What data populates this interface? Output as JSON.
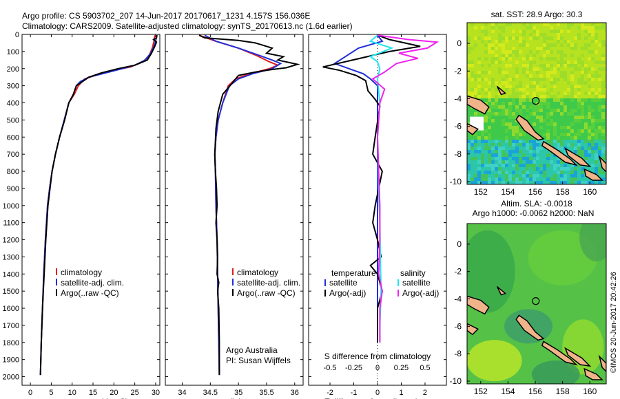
{
  "header": {
    "line1": "Argo profile: CS 5903702_207 14-Jun-2017 20170617_1231 4.157S 156.036E",
    "line2": "Climatology: CARS2009. Satellite-adjusted climatology: synTS_20170613.nc (1.6d earlier)"
  },
  "side_stamp": "©IMOS 20-Jun-2017 20:42:26",
  "colors": {
    "climatology": "#e41a1c",
    "satellite": "#1f2fd6",
    "argo": "#000000",
    "sat_cyan": "#22e6ee",
    "argo_magenta": "#ee22ee"
  },
  "chart_data": [
    {
      "type": "line",
      "id": "temperature",
      "xlabel": "temperature (deg C)",
      "xlim": [
        -2,
        31
      ],
      "ylim": [
        2050,
        0
      ],
      "xticks": [
        0,
        5,
        10,
        15,
        20,
        25,
        30
      ],
      "yticks": [
        0,
        100,
        200,
        300,
        400,
        500,
        600,
        700,
        800,
        900,
        1000,
        1100,
        1200,
        1300,
        1400,
        1500,
        1600,
        1700,
        1800,
        1900,
        2000
      ],
      "legend": [
        "climatology",
        "satellite-adj. clim.",
        "Argo(..raw -QC)"
      ],
      "series": [
        {
          "name": "climatology",
          "color": "#e41a1c",
          "points": [
            [
              29.8,
              5
            ],
            [
              29.6,
              40
            ],
            [
              29.2,
              80
            ],
            [
              28.5,
              120
            ],
            [
              27,
              160
            ],
            [
              24,
              190
            ],
            [
              20,
              210
            ],
            [
              16,
              235
            ],
            [
              13,
              260
            ],
            [
              11.5,
              300
            ],
            [
              10.5,
              350
            ],
            [
              9.2,
              400
            ],
            [
              8.2,
              500
            ],
            [
              7,
              600
            ],
            [
              6,
              700
            ],
            [
              5.2,
              800
            ],
            [
              4.6,
              900
            ],
            [
              4.1,
              1000
            ],
            [
              3.6,
              1200
            ],
            [
              3.2,
              1400
            ],
            [
              2.9,
              1600
            ],
            [
              2.6,
              1800
            ],
            [
              2.4,
              1990
            ]
          ]
        },
        {
          "name": "satellite-adj. clim.",
          "color": "#1f2fd6",
          "points": [
            [
              30.3,
              5
            ],
            [
              30,
              40
            ],
            [
              29.6,
              70
            ],
            [
              28.8,
              110
            ],
            [
              27.5,
              150
            ],
            [
              25,
              180
            ],
            [
              22,
              200
            ],
            [
              18,
              225
            ],
            [
              14,
              250
            ],
            [
              12,
              275
            ],
            [
              11,
              300
            ],
            [
              10.3,
              350
            ],
            [
              9.2,
              400
            ],
            [
              8.1,
              500
            ],
            [
              7,
              600
            ],
            [
              6,
              700
            ],
            [
              5.2,
              800
            ],
            [
              4.6,
              900
            ],
            [
              4.1,
              1000
            ],
            [
              3.6,
              1200
            ],
            [
              3.2,
              1400
            ],
            [
              2.9,
              1600
            ],
            [
              2.6,
              1800
            ],
            [
              2.4,
              1990
            ]
          ]
        },
        {
          "name": "Argo(..raw -QC)",
          "color": "#000000",
          "points": [
            [
              30.3,
              5
            ],
            [
              30.2,
              20
            ],
            [
              29.5,
              30
            ],
            [
              30.2,
              45
            ],
            [
              29.8,
              70
            ],
            [
              29,
              110
            ],
            [
              28,
              150
            ],
            [
              25,
              180
            ],
            [
              21,
              200
            ],
            [
              17,
              225
            ],
            [
              14,
              250
            ],
            [
              12.5,
              275
            ],
            [
              11,
              300
            ],
            [
              10.3,
              350
            ],
            [
              9.2,
              400
            ],
            [
              8.2,
              500
            ],
            [
              7,
              600
            ],
            [
              6,
              700
            ],
            [
              5.2,
              800
            ],
            [
              4.7,
              900
            ],
            [
              4.2,
              1000
            ],
            [
              3.7,
              1200
            ],
            [
              3.3,
              1400
            ],
            [
              2.9,
              1600
            ],
            [
              2.6,
              1800
            ],
            [
              2.4,
              1990
            ]
          ]
        }
      ]
    },
    {
      "type": "line",
      "id": "salinity",
      "xlabel": "salinity",
      "xlim": [
        33.7,
        36.15
      ],
      "ylim": [
        2050,
        0
      ],
      "xticks": [
        34,
        34.5,
        35,
        35.5,
        36
      ],
      "xticklabels": [
        "34",
        "34.5",
        "35",
        "35.5",
        "36"
      ],
      "legend": [
        "climatology",
        "satellite-adj. clim.",
        "Argo(..raw -QC)"
      ],
      "credit": [
        "Argo Australia",
        "PI: Susan Wijffels"
      ],
      "series": [
        {
          "name": "climatology",
          "color": "#e41a1c",
          "points": [
            [
              34.3,
              5
            ],
            [
              34.6,
              40
            ],
            [
              35,
              80
            ],
            [
              35.3,
              120
            ],
            [
              35.55,
              160
            ],
            [
              35.7,
              180
            ],
            [
              35.55,
              200
            ],
            [
              35.2,
              230
            ],
            [
              34.95,
              260
            ],
            [
              34.82,
              300
            ],
            [
              34.72,
              400
            ],
            [
              34.64,
              500
            ],
            [
              34.6,
              600
            ],
            [
              34.58,
              700
            ],
            [
              34.59,
              800
            ],
            [
              34.6,
              1000
            ],
            [
              34.62,
              1200
            ],
            [
              34.63,
              1400
            ],
            [
              34.64,
              1600
            ],
            [
              34.65,
              1800
            ],
            [
              34.66,
              1990
            ]
          ]
        },
        {
          "name": "satellite-adj. clim.",
          "color": "#1f2fd6",
          "points": [
            [
              34.4,
              5
            ],
            [
              34.6,
              40
            ],
            [
              35,
              80
            ],
            [
              35.35,
              120
            ],
            [
              35.6,
              150
            ],
            [
              35.75,
              170
            ],
            [
              35.6,
              200
            ],
            [
              35.25,
              230
            ],
            [
              35,
              260
            ],
            [
              34.84,
              300
            ],
            [
              34.72,
              400
            ],
            [
              34.64,
              500
            ],
            [
              34.6,
              600
            ],
            [
              34.58,
              700
            ],
            [
              34.59,
              800
            ],
            [
              34.6,
              1000
            ],
            [
              34.62,
              1200
            ],
            [
              34.63,
              1400
            ],
            [
              34.64,
              1600
            ],
            [
              34.65,
              1800
            ],
            [
              34.66,
              1990
            ]
          ]
        },
        {
          "name": "Argo(..raw -QC)",
          "color": "#000000",
          "points": [
            [
              34.3,
              5
            ],
            [
              34.4,
              20
            ],
            [
              35,
              35
            ],
            [
              35.3,
              50
            ],
            [
              35.6,
              80
            ],
            [
              35.5,
              110
            ],
            [
              35.8,
              130
            ],
            [
              35.7,
              150
            ],
            [
              36.05,
              175
            ],
            [
              35.85,
              195
            ],
            [
              35.6,
              205
            ],
            [
              35.3,
              220
            ],
            [
              35,
              240
            ],
            [
              34.95,
              260
            ],
            [
              34.85,
              300
            ],
            [
              34.72,
              350
            ],
            [
              34.64,
              450
            ],
            [
              34.6,
              550
            ],
            [
              34.58,
              700
            ],
            [
              34.59,
              800
            ],
            [
              34.61,
              900
            ],
            [
              34.62,
              1000
            ],
            [
              34.6,
              1100
            ],
            [
              34.62,
              1200
            ],
            [
              34.63,
              1300
            ],
            [
              34.62,
              1400
            ],
            [
              34.65,
              1450
            ],
            [
              34.63,
              1500
            ],
            [
              34.65,
              1600
            ],
            [
              34.66,
              1800
            ],
            [
              34.66,
              1990
            ]
          ]
        }
      ]
    },
    {
      "type": "line",
      "id": "difference",
      "xlabel": "T difference from climatology",
      "x2label": "S difference from climatology",
      "xlim": [
        -2.9,
        2.9
      ],
      "ylim": [
        2050,
        0
      ],
      "xticks": [
        -2,
        -1,
        0,
        1,
        2
      ],
      "x2ticks": [
        -0.5,
        -0.25,
        0,
        0.25,
        0.5
      ],
      "x2ticklabels": [
        "-0.5",
        "-0.25",
        "0",
        "0.25",
        "0.5"
      ],
      "legend_temperature": {
        "title": "temperature",
        "items": [
          "satellite",
          "Argo(-adj)"
        ]
      },
      "legend_salinity": {
        "title": "salinity",
        "items": [
          "satellite",
          "Argo(-adj)"
        ]
      },
      "series": [
        {
          "name": "satellite",
          "color": "#1f2fd6",
          "points": [
            [
              0,
              5
            ],
            [
              0.2,
              40
            ],
            [
              -0.8,
              80
            ],
            [
              -1.8,
              170
            ],
            [
              -1.2,
              200
            ],
            [
              -0.6,
              230
            ],
            [
              -0.3,
              260
            ],
            [
              0,
              300
            ],
            [
              0,
              600
            ],
            [
              0,
              1800
            ]
          ]
        },
        {
          "name": "Argo(-adj)",
          "color": "#000000",
          "points": [
            [
              0,
              5
            ],
            [
              0.5,
              30
            ],
            [
              1.8,
              70
            ],
            [
              0.5,
              100
            ],
            [
              -2.3,
              190
            ],
            [
              -1.6,
              210
            ],
            [
              -0.9,
              240
            ],
            [
              -0.5,
              270
            ],
            [
              -0.4,
              330
            ],
            [
              -0.1,
              380
            ],
            [
              0.1,
              420
            ],
            [
              -0.1,
              600
            ],
            [
              -0.2,
              700
            ],
            [
              0.2,
              800
            ],
            [
              -0.1,
              1000
            ],
            [
              -0.2,
              1100
            ],
            [
              0,
              1200
            ],
            [
              0.15,
              1300
            ],
            [
              -0.3,
              1350
            ],
            [
              0,
              1400
            ],
            [
              0.2,
              1500
            ],
            [
              0,
              1600
            ],
            [
              0,
              1800
            ]
          ]
        },
        {
          "name": "satellite (S)",
          "color": "#22e6ee",
          "points": [
            [
              0,
              5
            ],
            [
              -0.3,
              40
            ],
            [
              0.6,
              80
            ],
            [
              -0.3,
              130
            ],
            [
              0,
              160
            ],
            [
              0.1,
              200
            ],
            [
              0,
              260
            ],
            [
              0.1,
              400
            ],
            [
              0,
              600
            ],
            [
              0.05,
              900
            ],
            [
              0.1,
              1100
            ],
            [
              0.12,
              1300
            ],
            [
              0.15,
              1500
            ],
            [
              0.1,
              1700
            ],
            [
              0.1,
              1800
            ]
          ]
        },
        {
          "name": "Argo(-adj) (S)",
          "color": "#ee22ee",
          "points": [
            [
              0,
              5
            ],
            [
              1.3,
              30
            ],
            [
              2.5,
              45
            ],
            [
              2.1,
              80
            ],
            [
              0.9,
              110
            ],
            [
              1.7,
              140
            ],
            [
              0.8,
              170
            ],
            [
              0.3,
              220
            ],
            [
              -0.2,
              260
            ],
            [
              0.3,
              320
            ],
            [
              0.1,
              400
            ],
            [
              0,
              600
            ],
            [
              0.05,
              800
            ],
            [
              0.1,
              1000
            ],
            [
              0.1,
              1200
            ],
            [
              0.05,
              1400
            ],
            [
              0.2,
              1500
            ],
            [
              0.1,
              1600
            ],
            [
              0.1,
              1800
            ]
          ]
        }
      ]
    },
    {
      "type": "heatmap",
      "id": "sst_map",
      "title": "sat. SST: 28.9 Argo: 30.3",
      "xlim": [
        151,
        161.2
      ],
      "ylim": [
        -10.2,
        1.5
      ],
      "xticks": [
        152,
        154,
        156,
        158,
        160
      ],
      "yticks": [
        0,
        -2,
        -4,
        -6,
        -8,
        -10
      ],
      "marker": {
        "lon": 156.036,
        "lat": -4.157
      }
    },
    {
      "type": "heatmap",
      "id": "sla_map",
      "title_lines": [
        "Altim. SLA: -0.0018",
        "Argo h1000: -0.0062 h2000: NaN"
      ],
      "xlim": [
        151,
        161.2
      ],
      "ylim": [
        -10.2,
        1.5
      ],
      "xticks": [
        152,
        154,
        156,
        158,
        160
      ],
      "yticks": [
        0,
        -2,
        -4,
        -6,
        -8,
        -10
      ],
      "marker": {
        "lon": 156.036,
        "lat": -4.157
      }
    }
  ]
}
